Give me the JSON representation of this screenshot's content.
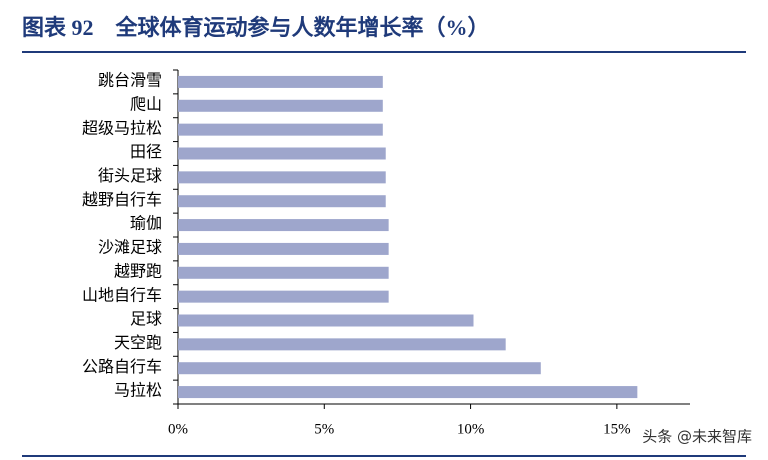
{
  "chart_data": {
    "type": "barh",
    "title": "图表 92　全球体育运动参与人数年增长率（%）",
    "categories": [
      "跳台滑雪",
      "爬山",
      "超级马拉松",
      "田径",
      "街头足球",
      "越野自行车",
      "瑜伽",
      "沙滩足球",
      "越野跑",
      "山地自行车",
      "足球",
      "天空跑",
      "公路自行车",
      "马拉松"
    ],
    "values": [
      7.0,
      7.0,
      7.0,
      7.1,
      7.1,
      7.1,
      7.2,
      7.2,
      7.2,
      7.2,
      10.1,
      11.2,
      12.4,
      15.7
    ],
    "color": "#9ea6cc",
    "xlim": [
      0,
      17.5
    ],
    "xticks": [
      {
        "value": 0,
        "label": "0%"
      },
      {
        "value": 5,
        "label": "5%"
      },
      {
        "value": 10,
        "label": "10%"
      },
      {
        "value": 15,
        "label": "15%"
      }
    ],
    "watermark": "头条 @未来智库"
  }
}
